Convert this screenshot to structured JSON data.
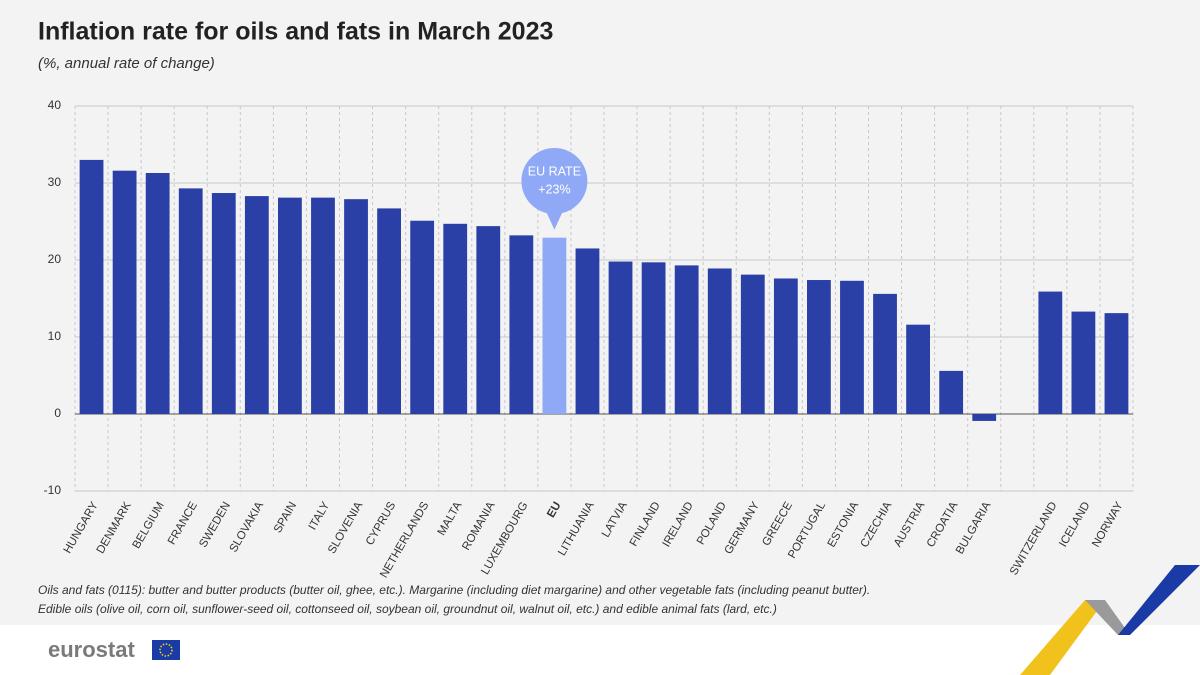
{
  "chart_data": {
    "type": "bar",
    "title": "Inflation rate for oils and fats in March 2023",
    "subtitle": "(%, annual rate of change)",
    "categories": [
      "HUNGARY",
      "DENMARK",
      "BELGIUM",
      "FRANCE",
      "SWEDEN",
      "SLOVAKIA",
      "SPAIN",
      "ITALY",
      "SLOVENIA",
      "CYPRUS",
      "NETHERLANDS",
      "MALTA",
      "ROMANIA",
      "LUXEMBOURG",
      "EU",
      "LITHUANIA",
      "LATVIA",
      "FINLAND",
      "IRELAND",
      "POLAND",
      "GERMANY",
      "GREECE",
      "PORTUGAL",
      "ESTONIA",
      "CZECHIA",
      "AUSTRIA",
      "CROATIA",
      "BULGARIA",
      null,
      "SWITZERLAND",
      "ICELAND",
      "NORWAY"
    ],
    "values": [
      33.0,
      31.6,
      31.3,
      29.3,
      28.7,
      28.3,
      28.1,
      28.1,
      27.9,
      26.7,
      25.1,
      24.7,
      24.4,
      23.2,
      22.9,
      21.5,
      19.8,
      19.7,
      19.3,
      18.9,
      18.1,
      17.6,
      17.4,
      17.3,
      15.6,
      11.6,
      5.6,
      -0.9,
      null,
      15.9,
      13.3,
      13.1
    ],
    "color": "#2b40a6",
    "highlight": {
      "index": 14,
      "color": "#8fa9f6"
    },
    "annotation": {
      "lines": [
        "EU RATE",
        "+23%"
      ],
      "index": 14
    },
    "ylim": [
      -10,
      40
    ],
    "yticks": [
      -10,
      0,
      10,
      20,
      30,
      40
    ],
    "grid": true,
    "notes": [
      "Oils and fats (0115): butter and butter products (butter oil, ghee, etc.). Margarine (including diet margarine) and other vegetable fats (including peanut butter).",
      "Edible oils (olive oil, corn oil, sunflower-seed oil, cottonseed oil, soybean oil, groundnut oil, walnut oil, etc.) and edible animal fats (lard, etc.)"
    ],
    "source": "eurostat"
  }
}
